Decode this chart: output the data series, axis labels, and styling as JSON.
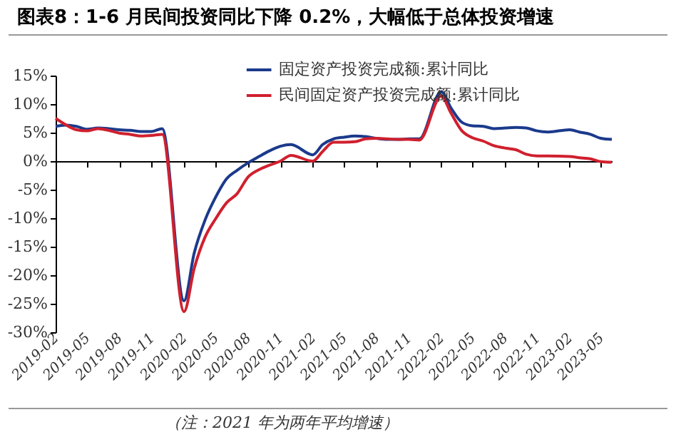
{
  "chart_data": {
    "type": "line",
    "title": "图表8：1-6 月民间投资同比下降 0.2%，大幅低于总体投资增速",
    "annotations": [
      "（注：2021 年为两年平均增速）"
    ],
    "x": [
      "2019-02",
      "2019-03",
      "2019-04",
      "2019-05",
      "2019-06",
      "2019-07",
      "2019-08",
      "2019-09",
      "2019-10",
      "2019-11",
      "2019-12",
      "2020-02",
      "2020-03",
      "2020-04",
      "2020-05",
      "2020-06",
      "2020-07",
      "2020-08",
      "2020-09",
      "2020-10",
      "2020-11",
      "2020-12",
      "2021-02",
      "2021-03",
      "2021-04",
      "2021-05",
      "2021-06",
      "2021-07",
      "2021-08",
      "2021-09",
      "2021-10",
      "2021-11",
      "2021-12",
      "2022-02",
      "2022-03",
      "2022-04",
      "2022-05",
      "2022-06",
      "2022-07",
      "2022-08",
      "2022-09",
      "2022-10",
      "2022-11",
      "2022-12",
      "2023-02",
      "2023-03",
      "2023-04",
      "2023-05",
      "2023-06"
    ],
    "series": [
      {
        "name": "固定资产投资完成额:累计同比",
        "color": "#1b3a8c",
        "values": [
          6.1,
          6.3,
          6.1,
          5.6,
          5.8,
          5.7,
          5.5,
          5.4,
          5.2,
          5.2,
          5.7,
          -24.5,
          -16.1,
          -10.3,
          -6.3,
          -3.1,
          -1.6,
          -0.3,
          0.8,
          1.8,
          2.6,
          2.9,
          1.1,
          2.9,
          3.9,
          4.2,
          4.4,
          4.3,
          4.0,
          3.8,
          3.8,
          3.9,
          3.9,
          12.2,
          9.3,
          6.8,
          6.2,
          6.1,
          5.7,
          5.8,
          5.9,
          5.8,
          5.3,
          5.1,
          5.5,
          5.1,
          4.7,
          4.0,
          3.8
        ]
      },
      {
        "name": "民间固定资产投资完成额:累计同比",
        "color": "#d0202e",
        "values": [
          7.5,
          6.4,
          5.5,
          5.3,
          5.7,
          5.4,
          4.9,
          4.7,
          4.4,
          4.5,
          4.7,
          -26.4,
          -18.8,
          -13.3,
          -10.1,
          -7.3,
          -5.7,
          -2.8,
          -1.5,
          -0.7,
          0.0,
          1.0,
          0.0,
          1.7,
          3.3,
          3.3,
          3.4,
          3.9,
          4.0,
          3.9,
          3.8,
          3.8,
          3.7,
          11.4,
          8.4,
          5.3,
          4.1,
          3.5,
          2.7,
          2.3,
          2.0,
          1.2,
          0.9,
          0.9,
          0.8,
          0.6,
          0.4,
          -0.1,
          -0.2
        ]
      }
    ],
    "xlim": [
      "2019-02",
      "2023-06"
    ],
    "xticks": [
      "2019-02",
      "2019-05",
      "2019-08",
      "2019-11",
      "2020-02",
      "2020-05",
      "2020-08",
      "2020-11",
      "2021-02",
      "2021-05",
      "2021-08",
      "2021-11",
      "2022-02",
      "2022-05",
      "2022-08",
      "2022-11",
      "2023-02",
      "2023-05"
    ],
    "ylim": [
      -30,
      15
    ],
    "yticks": [
      {
        "value": -30,
        "label": "-30%"
      },
      {
        "value": -25,
        "label": "-25%"
      },
      {
        "value": -20,
        "label": "-20%"
      },
      {
        "value": -15,
        "label": "-15%"
      },
      {
        "value": -10,
        "label": "-10%"
      },
      {
        "value": -5,
        "label": "-5%"
      },
      {
        "value": 0,
        "label": "0%"
      },
      {
        "value": 5,
        "label": "5%"
      },
      {
        "value": 10,
        "label": "10%"
      },
      {
        "value": 15,
        "label": "15%"
      }
    ],
    "legend": "top",
    "line_style": "solid"
  }
}
